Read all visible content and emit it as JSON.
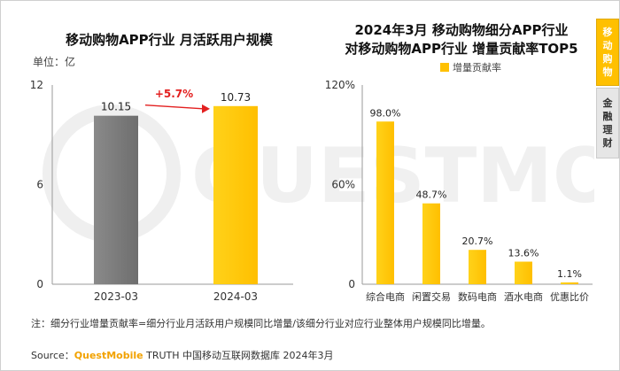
{
  "side_tabs": [
    {
      "label": "移动购物",
      "active": true
    },
    {
      "label": "金融理财",
      "active": false
    }
  ],
  "note": "注：细分行业增量贡献率=细分行业月活跃用户规模同比增量/该细分行业对应行业整体用户规模同比增量。",
  "source": {
    "prefix": "Source：",
    "brand": "QuestMobile",
    "rest": " TRUTH 中国移动互联网数据库 2024年3月"
  },
  "watermark": "QUESTMOBILE",
  "colors": {
    "gray": "#808080",
    "yellow": "#ffc000",
    "arrow": "#e32020",
    "axis": "#9a9a9a"
  },
  "chart_data": [
    {
      "type": "bar",
      "title": "移动购物APP行业 月活跃用户规模",
      "unit_label": "单位：亿",
      "categories": [
        "2023-03",
        "2024-03"
      ],
      "values": [
        10.15,
        10.73
      ],
      "value_labels": [
        "10.15",
        "10.73"
      ],
      "bar_colors": [
        "#808080",
        "#ffc000"
      ],
      "yticks": [
        "0",
        "6",
        "12"
      ],
      "ylim": [
        0,
        12
      ],
      "annotation": "+5.7%",
      "grid": false
    },
    {
      "type": "bar",
      "title": [
        "2024年3月 移动购物细分APP行业",
        "对移动购物APP行业 增量贡献率TOP5"
      ],
      "legend": "增量贡献率",
      "categories": [
        "综合电商",
        "闲置交易",
        "数码电商",
        "酒水电商",
        "优惠比价"
      ],
      "values": [
        98.0,
        48.7,
        20.7,
        13.6,
        1.1
      ],
      "value_labels": [
        "98.0%",
        "48.7%",
        "20.7%",
        "13.6%",
        "1.1%"
      ],
      "yticks": [
        "0",
        "60%",
        "120%"
      ],
      "ylim": [
        0,
        120
      ],
      "grid": false
    }
  ]
}
